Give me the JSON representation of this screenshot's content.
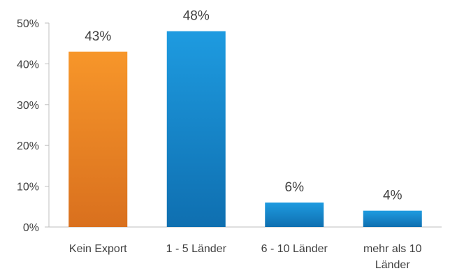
{
  "chart_data": {
    "type": "bar",
    "title": "",
    "xlabel": "",
    "ylabel": "",
    "categories": [
      [
        "Kein Export"
      ],
      [
        "1 - 5 Länder"
      ],
      [
        "6 - 10 Länder"
      ],
      [
        "mehr als 10",
        "Länder"
      ]
    ],
    "values": [
      43,
      48,
      6,
      4
    ],
    "data_labels": [
      "43%",
      "48%",
      "6%",
      "4%"
    ],
    "ylim": [
      0,
      50
    ],
    "y_ticks": [
      "0%",
      "10%",
      "20%",
      "30%",
      "40%",
      "50%"
    ],
    "grid": false,
    "legend": "none",
    "colors": {
      "highlight_top": "#F7962A",
      "highlight_bottom": "#D9701E",
      "primary_top": "#1E9BE0",
      "primary_bottom": "#0F6FB0",
      "axis": "#BFBFBF",
      "text": "#404040"
    },
    "bar_styles": [
      "highlight",
      "primary",
      "primary",
      "primary"
    ]
  }
}
